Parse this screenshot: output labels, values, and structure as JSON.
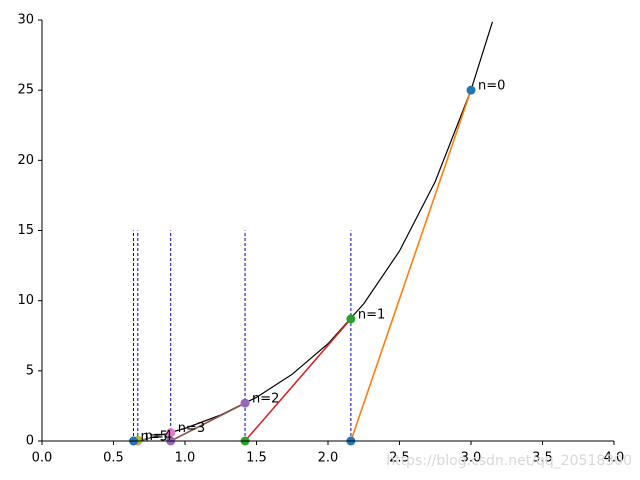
{
  "chart_data": {
    "type": "newton",
    "curve": {
      "color": "#000000",
      "x": [
        0.68,
        0.7,
        1.0,
        1.25,
        1.5,
        1.75,
        2.0,
        2.25,
        2.5,
        2.75,
        3.0,
        3.15
      ],
      "y": [
        0.01,
        0.06,
        0.9,
        1.86,
        3.11,
        4.76,
        6.93,
        9.78,
        13.54,
        18.49,
        25.01,
        29.87
      ]
    },
    "iterations": [
      {
        "label": "n=0",
        "x": 3.0,
        "y": 25.0,
        "color": "#1f77b4",
        "tangent_color": "#ff7f0e"
      },
      {
        "label": "n=1",
        "x": 2.16,
        "y": 8.7,
        "color": "#2ca02c",
        "tangent_color": "#d62728"
      },
      {
        "label": "n=2",
        "x": 1.42,
        "y": 2.7,
        "color": "#9467bd",
        "tangent_color": "#8c564b"
      },
      {
        "label": "n=3",
        "x": 0.9,
        "y": 0.6,
        "color": "#e377c2",
        "tangent_color": "#7f7f7f"
      },
      {
        "label": "n=4",
        "x": 0.67,
        "y": 0.05,
        "color": "#bcbd22",
        "tangent_color": "#17becf"
      },
      {
        "label": "n=5",
        "x": 0.64,
        "y": 0.0,
        "color": "#1f77b4",
        "tangent_color": "#ff7f0e"
      }
    ],
    "guide_top": 15,
    "guide_color": "#0000cc",
    "xlim": [
      0,
      4
    ],
    "ylim": [
      0,
      30
    ],
    "xticks": [
      {
        "value": 0,
        "label": "0.0"
      },
      0.5,
      {
        "value": 1,
        "label": "1.0"
      },
      1.5,
      {
        "value": 2,
        "label": "2.0"
      },
      2.5,
      {
        "value": 3,
        "label": "3.0"
      },
      3.5,
      {
        "value": 4,
        "label": "4.0"
      }
    ],
    "yticks": [
      0,
      5,
      10,
      15,
      20,
      25,
      30
    ],
    "watermark": "https://blog.csdn.net/qq_20518300"
  }
}
